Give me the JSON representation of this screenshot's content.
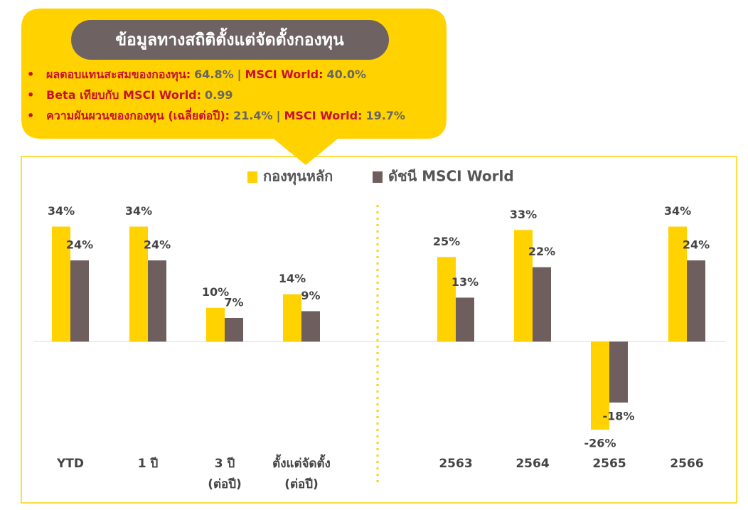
{
  "callout": {
    "title": "ข้อมูลทางสถิติตั้งแต่จัดตั้งกองทุน",
    "bullets": [
      [
        {
          "text": "ผลตอบแทนสะสมของกองทุน:",
          "role": "label"
        },
        {
          "text": "64.8%",
          "role": "value"
        },
        {
          "text": "|",
          "role": "sep"
        },
        {
          "text": "MSCI World:",
          "role": "label"
        },
        {
          "text": "40.0%",
          "role": "value"
        }
      ],
      [
        {
          "text": "Beta เทียบกับ MSCI World:",
          "role": "label"
        },
        {
          "text": "0.99",
          "role": "value"
        }
      ],
      [
        {
          "text": "ความผันผวนของกองทุน (เฉลี่ยต่อปี):",
          "role": "label"
        },
        {
          "text": "21.4%",
          "role": "value"
        },
        {
          "text": "|",
          "role": "sep"
        },
        {
          "text": "MSCI World:",
          "role": "label"
        },
        {
          "text": "19.7%",
          "role": "value"
        }
      ]
    ]
  },
  "chart_data": {
    "type": "bar",
    "categories": [
      [
        "YTD"
      ],
      [
        "1 ปี"
      ],
      [
        "3 ปี",
        "(ต่อปี)"
      ],
      [
        "ตั้งแต่จัดตั้ง",
        "(ต่อปี)"
      ],
      [
        "2563"
      ],
      [
        "2564"
      ],
      [
        "2565"
      ],
      [
        "2566"
      ]
    ],
    "series": [
      {
        "name": "กองทุนหลัก",
        "color": "#FFD200",
        "values": [
          34,
          34,
          10,
          14,
          25,
          33,
          -26,
          34
        ],
        "value_labels": [
          "34%",
          "34%",
          "10%",
          "14%",
          "25%",
          "33%",
          "-26%",
          "34%"
        ]
      },
      {
        "name": "ดัชนี MSCI World",
        "color": "#6E5E5E",
        "values": [
          24,
          24,
          7,
          9,
          13,
          22,
          -18,
          24
        ],
        "value_labels": [
          "24%",
          "24%",
          "7%",
          "9%",
          "13%",
          "22%",
          "-18%",
          "24%"
        ]
      }
    ],
    "ylim": [
      -30,
      40
    ],
    "grid": false
  }
}
